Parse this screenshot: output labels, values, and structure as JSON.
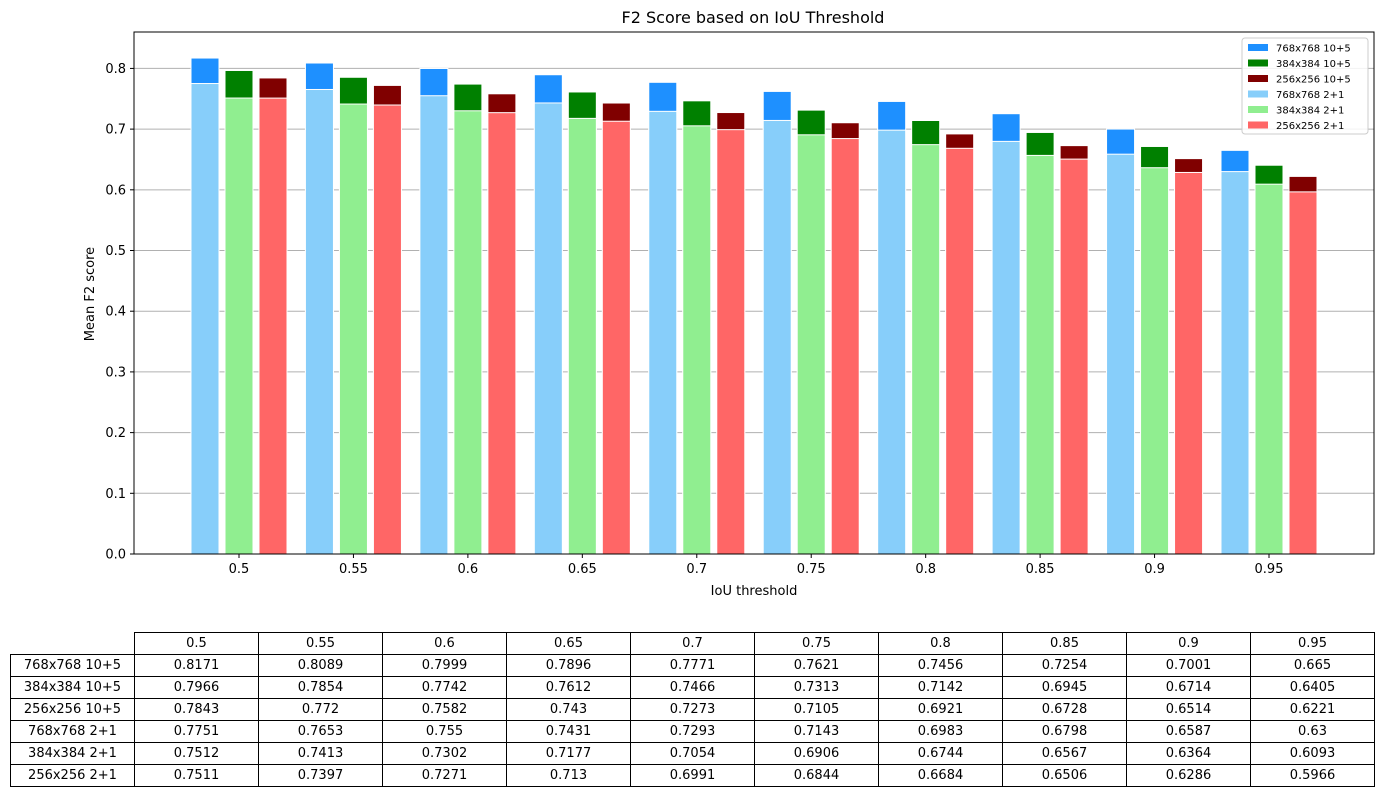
{
  "chart_data": {
    "type": "bar",
    "title": "F2 Score based on IoU Threshold",
    "xlabel": "IoU threshold",
    "ylabel": "Mean F2 score",
    "ylim": [
      0,
      0.86
    ],
    "yticks": [
      "0.0",
      "0.1",
      "0.2",
      "0.3",
      "0.4",
      "0.5",
      "0.6",
      "0.7",
      "0.8"
    ],
    "grid": "horizontal",
    "legend_position": "top-right",
    "categories": [
      "0.5",
      "0.55",
      "0.6",
      "0.65",
      "0.7",
      "0.75",
      "0.8",
      "0.85",
      "0.9",
      "0.95"
    ],
    "series": [
      {
        "name": "768x768 10+5",
        "color": "#1e90ff",
        "values": [
          0.8171,
          0.8089,
          0.7999,
          0.7896,
          0.7771,
          0.7621,
          0.7456,
          0.7254,
          0.7001,
          0.665
        ]
      },
      {
        "name": "384x384 10+5",
        "color": "#008000",
        "values": [
          0.7966,
          0.7854,
          0.7742,
          0.7612,
          0.7466,
          0.7313,
          0.7142,
          0.6945,
          0.6714,
          0.6405
        ]
      },
      {
        "name": "256x256 10+5",
        "color": "#800000",
        "values": [
          0.7843,
          0.772,
          0.7582,
          0.743,
          0.7273,
          0.7105,
          0.6921,
          0.6728,
          0.6514,
          0.6221
        ]
      },
      {
        "name": "768x768 2+1",
        "color": "#87cefa",
        "values": [
          0.7751,
          0.7653,
          0.755,
          0.7431,
          0.7293,
          0.7143,
          0.6983,
          0.6798,
          0.6587,
          0.63
        ]
      },
      {
        "name": "384x384 2+1",
        "color": "#90ee90",
        "values": [
          0.7512,
          0.7413,
          0.7302,
          0.7177,
          0.7054,
          0.6906,
          0.6744,
          0.6567,
          0.6364,
          0.6093
        ]
      },
      {
        "name": "256x256 2+1",
        "color": "#ff6666",
        "values": [
          0.7511,
          0.7397,
          0.7271,
          0.713,
          0.6991,
          0.6844,
          0.6684,
          0.6506,
          0.6286,
          0.5966
        ]
      }
    ],
    "table": {
      "columns": [
        "0.5",
        "0.55",
        "0.6",
        "0.65",
        "0.7",
        "0.75",
        "0.8",
        "0.85",
        "0.9",
        "0.95"
      ],
      "rows": [
        {
          "label": "768x768 10+5",
          "cells": [
            "0.8171",
            "0.8089",
            "0.7999",
            "0.7896",
            "0.7771",
            "0.7621",
            "0.7456",
            "0.7254",
            "0.7001",
            "0.665"
          ]
        },
        {
          "label": "384x384 10+5",
          "cells": [
            "0.7966",
            "0.7854",
            "0.7742",
            "0.7612",
            "0.7466",
            "0.7313",
            "0.7142",
            "0.6945",
            "0.6714",
            "0.6405"
          ]
        },
        {
          "label": "256x256 10+5",
          "cells": [
            "0.7843",
            "0.772",
            "0.7582",
            "0.743",
            "0.7273",
            "0.7105",
            "0.6921",
            "0.6728",
            "0.6514",
            "0.6221"
          ]
        },
        {
          "label": "768x768 2+1",
          "cells": [
            "0.7751",
            "0.7653",
            "0.755",
            "0.7431",
            "0.7293",
            "0.7143",
            "0.6983",
            "0.6798",
            "0.6587",
            "0.63"
          ]
        },
        {
          "label": "384x384 2+1",
          "cells": [
            "0.7512",
            "0.7413",
            "0.7302",
            "0.7177",
            "0.7054",
            "0.6906",
            "0.6744",
            "0.6567",
            "0.6364",
            "0.6093"
          ]
        },
        {
          "label": "256x256 2+1",
          "cells": [
            "0.7511",
            "0.7397",
            "0.7271",
            "0.713",
            "0.6991",
            "0.6844",
            "0.6684",
            "0.6506",
            "0.6286",
            "0.5966"
          ]
        }
      ]
    }
  }
}
